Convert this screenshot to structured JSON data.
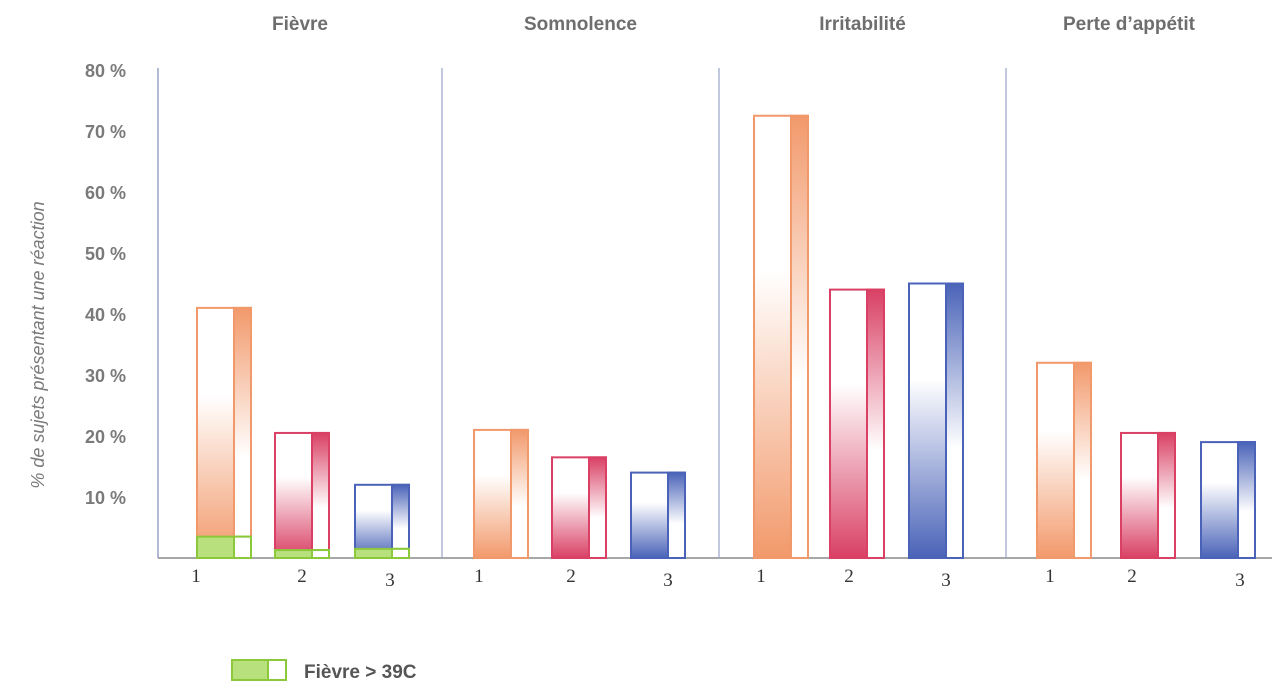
{
  "chart_data": {
    "type": "bar",
    "ylabel": "% de sujets présentant une réaction",
    "ylim": [
      0,
      80
    ],
    "yticks": [
      "10 %",
      "20 %",
      "30 %",
      "40 %",
      "50 %",
      "60 %",
      "70 %",
      "80 %"
    ],
    "ytick_values": [
      10,
      20,
      30,
      40,
      50,
      60,
      70,
      80
    ],
    "categories": [
      "1",
      "2",
      "3"
    ],
    "groups": [
      "Fièvre",
      "Somnolence",
      "Irritabilité",
      "Perte d’appétit"
    ],
    "series": [
      {
        "group": "Fièvre",
        "values": [
          41,
          20.5,
          12
        ]
      },
      {
        "group": "Somnolence",
        "values": [
          21,
          16.5,
          14
        ]
      },
      {
        "group": "Irritabilité",
        "values": [
          72.5,
          44,
          45
        ]
      },
      {
        "group": "Perte d’appétit",
        "values": [
          32,
          20.5,
          19
        ]
      }
    ],
    "overlay": {
      "name": "Fièvre > 39C",
      "group": "Fièvre",
      "values": [
        3.5,
        1.3,
        1.5
      ]
    },
    "colors": [
      "#f2996b",
      "#d94064",
      "#4a63b8"
    ],
    "overlay_color": "#8cc83c",
    "legend": {
      "label": "Fièvre > 39C",
      "position": "bottom-left"
    },
    "grid": false
  }
}
